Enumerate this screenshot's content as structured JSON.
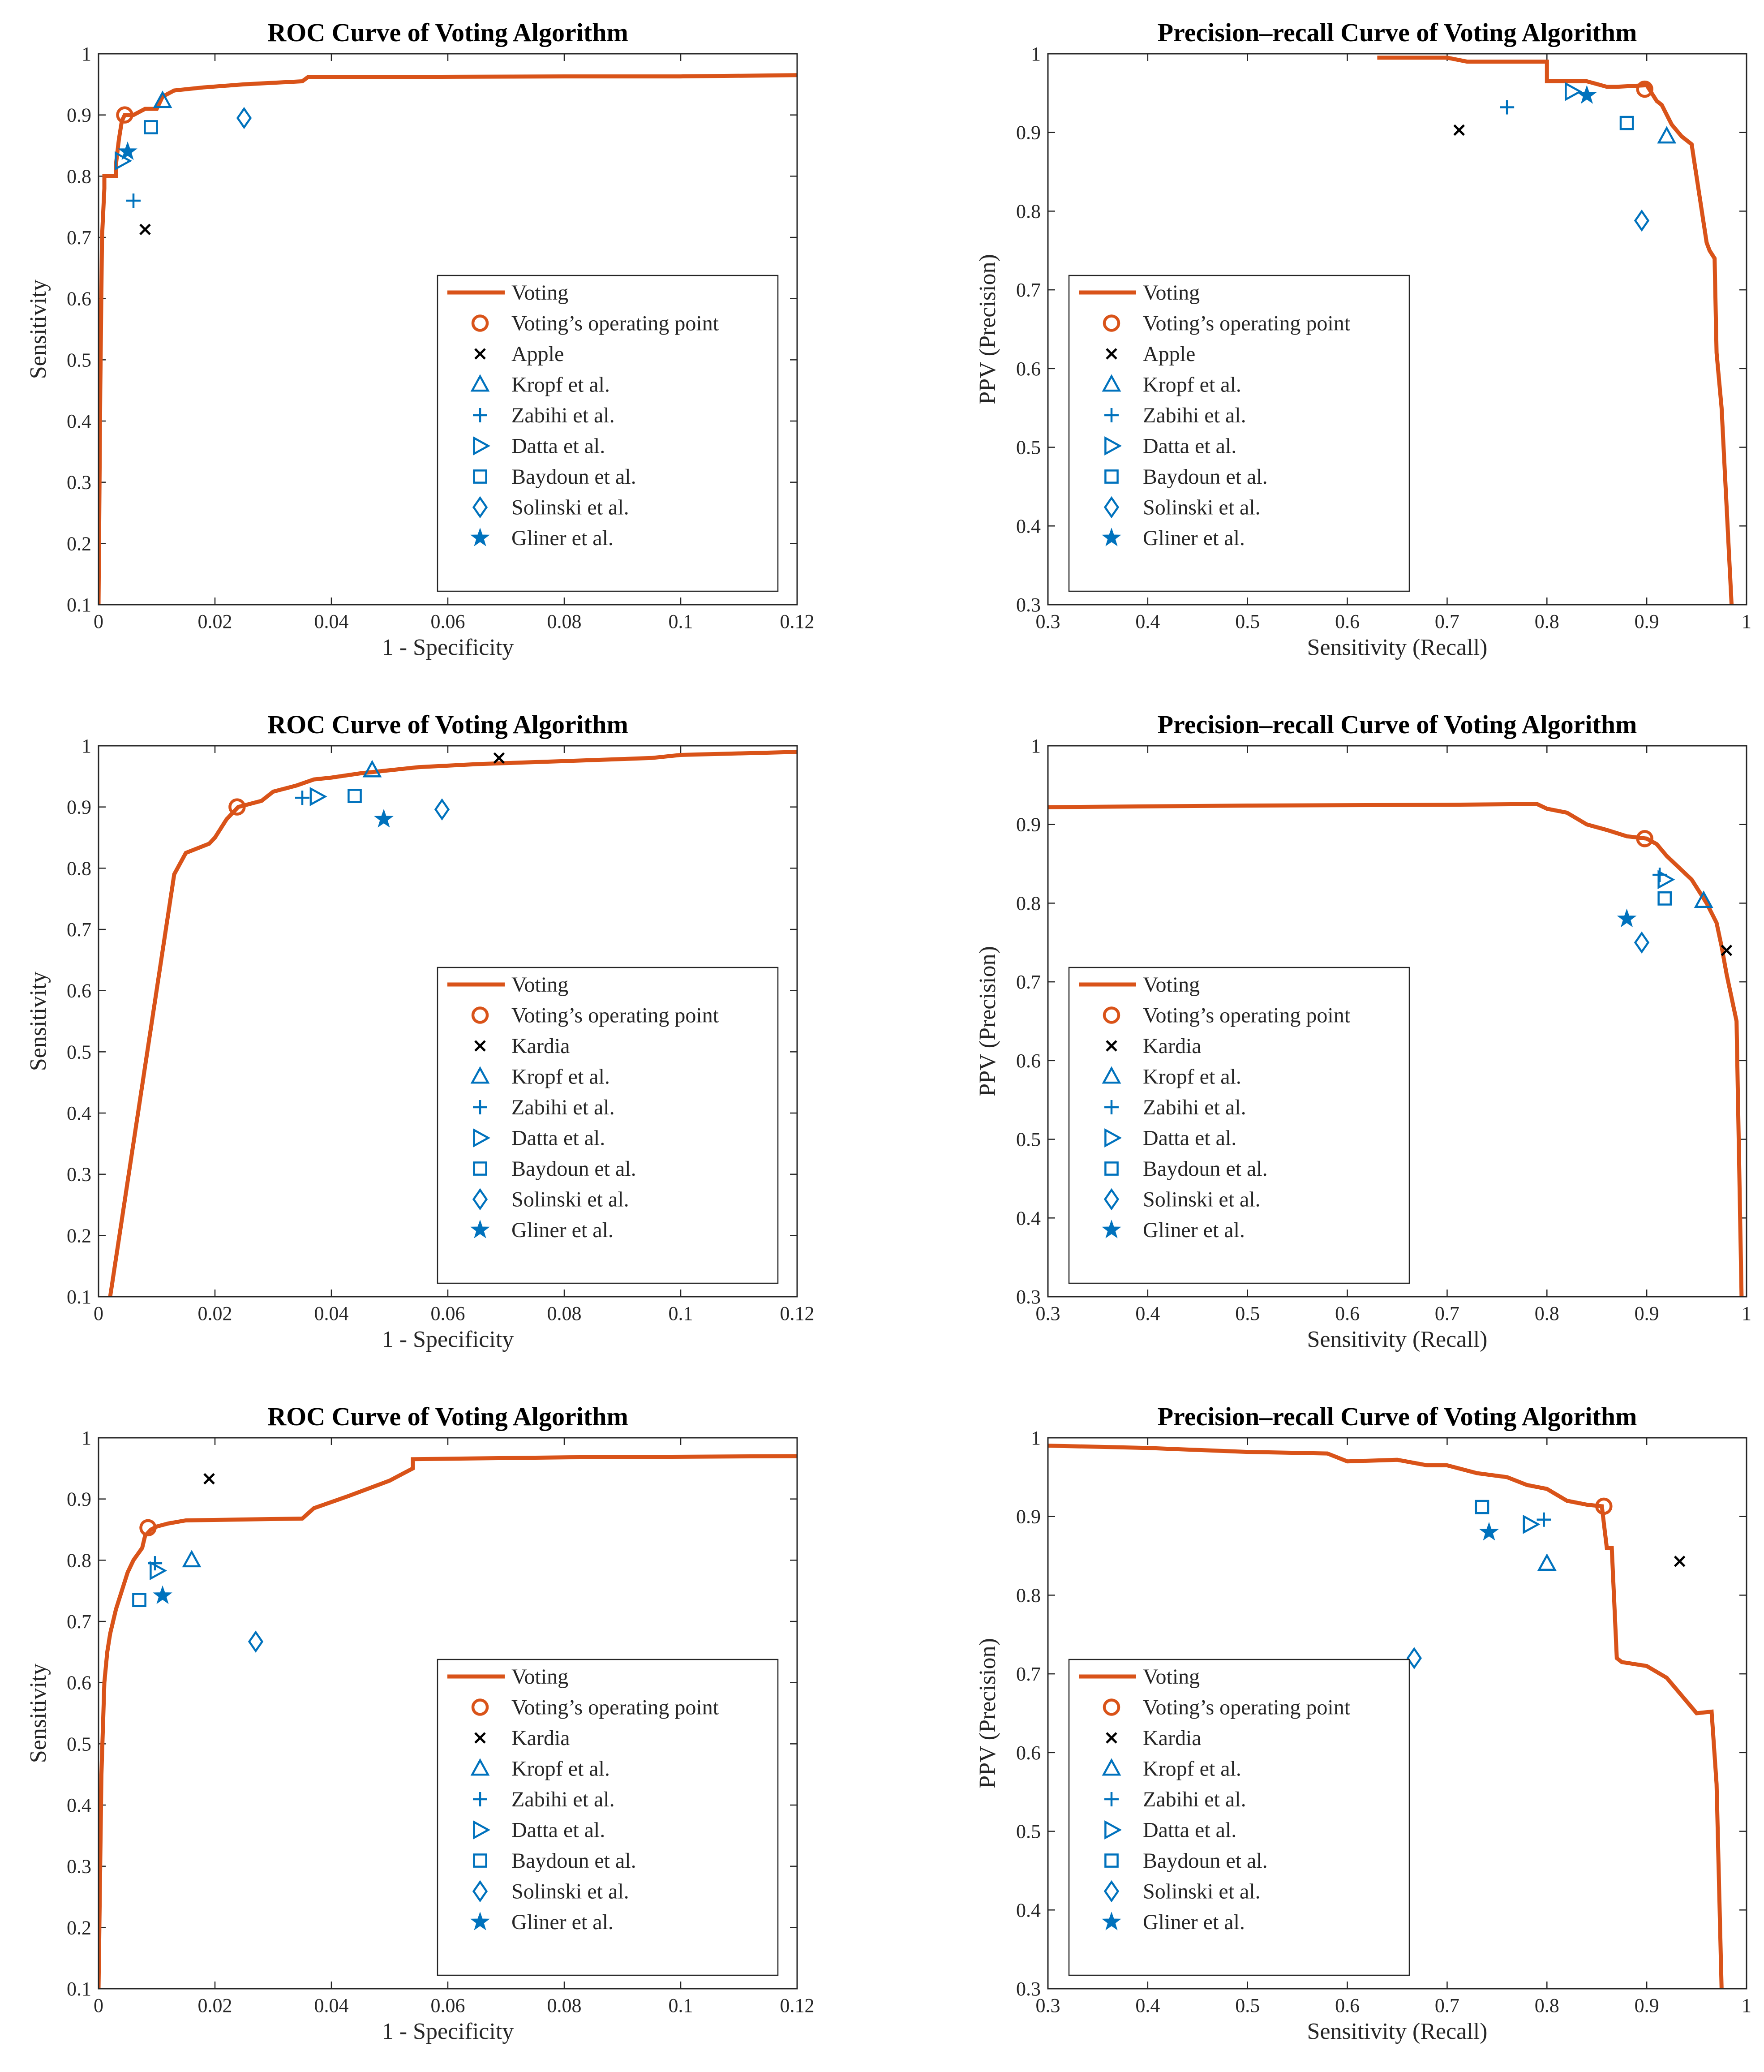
{
  "figure": {
    "name": "roc-and-precision-recall-panels"
  },
  "colors": {
    "voting": "#D95319",
    "method": "#0072BD",
    "reference": "#000000",
    "axis": "#262626"
  },
  "legend_labels": {
    "voting": "Voting",
    "operating_point": "Voting’s operating point",
    "kropf": "Kropf et al.",
    "zabihi": "Zabihi et al.",
    "datta": "Datta et al.",
    "baydoun": "Baydoun et al.",
    "solinski": "Solinski et al.",
    "gliner": "Gliner et al."
  },
  "chart_data": [
    {
      "type": "line",
      "panel": "roc-1",
      "title": "ROC Curve of Voting Algorithm",
      "xlabel": "1 - Specificity",
      "ylabel": "Sensitivity",
      "xlim": [
        0,
        0.12
      ],
      "ylim": [
        0.1,
        1
      ],
      "xticks": [
        0,
        0.02,
        0.04,
        0.06,
        0.08,
        0.1,
        0.12
      ],
      "xtick_labels": [
        "0",
        "0.02",
        "0.04",
        "0.06",
        "0.08",
        "0.1",
        "0.12"
      ],
      "yticks": [
        0.1,
        0.2,
        0.3,
        0.4,
        0.5,
        0.6,
        0.7,
        0.8,
        0.9,
        1
      ],
      "ytick_labels": [
        "0.1",
        "0.2",
        "0.3",
        "0.4",
        "0.5",
        "0.6",
        "0.7",
        "0.8",
        "0.9",
        "1"
      ],
      "legend_position": "bottom-right",
      "reference_label": "Apple",
      "curve": {
        "name": "Voting",
        "x": [
          0,
          0.0003,
          0.0006,
          0.001,
          0.001,
          0.003,
          0.003,
          0.0035,
          0.004,
          0.0045,
          0.006,
          0.008,
          0.01,
          0.011,
          0.013,
          0.018,
          0.025,
          0.035,
          0.036,
          0.05,
          0.08,
          0.1,
          0.12
        ],
        "y": [
          0.1,
          0.45,
          0.7,
          0.78,
          0.8,
          0.8,
          0.82,
          0.86,
          0.89,
          0.9,
          0.9,
          0.91,
          0.91,
          0.93,
          0.94,
          0.945,
          0.95,
          0.955,
          0.962,
          0.962,
          0.963,
          0.963,
          0.965
        ]
      },
      "operating_point": {
        "x": 0.0045,
        "y": 0.9
      },
      "reference_point": {
        "x": 0.008,
        "y": 0.713
      },
      "methods": [
        {
          "key": "kropf",
          "x": 0.011,
          "y": 0.923
        },
        {
          "key": "zabihi",
          "x": 0.006,
          "y": 0.76
        },
        {
          "key": "datta",
          "x": 0.004,
          "y": 0.825
        },
        {
          "key": "baydoun",
          "x": 0.009,
          "y": 0.88
        },
        {
          "key": "solinski",
          "x": 0.025,
          "y": 0.895
        },
        {
          "key": "gliner",
          "x": 0.005,
          "y": 0.84
        }
      ]
    },
    {
      "type": "line",
      "panel": "pr-1",
      "title": "Precision–recall Curve of Voting Algorithm",
      "xlabel": "Sensitivity (Recall)",
      "ylabel": "PPV (Precision)",
      "xlim": [
        0.3,
        1
      ],
      "ylim": [
        0.3,
        1
      ],
      "xticks": [
        0.3,
        0.4,
        0.5,
        0.6,
        0.7,
        0.8,
        0.9,
        1
      ],
      "xtick_labels": [
        "0.3",
        "0.4",
        "0.5",
        "0.6",
        "0.7",
        "0.8",
        "0.9",
        "1"
      ],
      "yticks": [
        0.3,
        0.4,
        0.5,
        0.6,
        0.7,
        0.8,
        0.9,
        1
      ],
      "ytick_labels": [
        "0.3",
        "0.4",
        "0.5",
        "0.6",
        "0.7",
        "0.8",
        "0.9",
        "1"
      ],
      "legend_position": "bottom-left",
      "reference_label": "Apple",
      "curve": {
        "name": "Voting",
        "x": [
          0.63,
          0.7,
          0.72,
          0.8,
          0.8,
          0.805,
          0.84,
          0.86,
          0.87,
          0.9,
          0.91,
          0.915,
          0.925,
          0.935,
          0.945,
          0.96,
          0.963,
          0.968,
          0.97,
          0.975,
          0.985
        ],
        "y": [
          0.995,
          0.995,
          0.99,
          0.99,
          0.965,
          0.965,
          0.965,
          0.958,
          0.958,
          0.96,
          0.94,
          0.935,
          0.91,
          0.895,
          0.885,
          0.76,
          0.75,
          0.74,
          0.62,
          0.55,
          0.3
        ]
      },
      "operating_point": {
        "x": 0.898,
        "y": 0.955
      },
      "reference_point": {
        "x": 0.712,
        "y": 0.903
      },
      "methods": [
        {
          "key": "kropf",
          "x": 0.92,
          "y": 0.895
        },
        {
          "key": "zabihi",
          "x": 0.76,
          "y": 0.932
        },
        {
          "key": "datta",
          "x": 0.825,
          "y": 0.952
        },
        {
          "key": "baydoun",
          "x": 0.88,
          "y": 0.912
        },
        {
          "key": "solinski",
          "x": 0.895,
          "y": 0.788
        },
        {
          "key": "gliner",
          "x": 0.84,
          "y": 0.947
        }
      ]
    },
    {
      "type": "line",
      "panel": "roc-2",
      "title": "ROC Curve of Voting Algorithm",
      "xlabel": "1 - Specificity",
      "ylabel": "Sensitivity",
      "xlim": [
        0,
        0.12
      ],
      "ylim": [
        0.1,
        1
      ],
      "xticks": [
        0,
        0.02,
        0.04,
        0.06,
        0.08,
        0.1,
        0.12
      ],
      "xtick_labels": [
        "0",
        "0.02",
        "0.04",
        "0.06",
        "0.08",
        "0.1",
        "0.12"
      ],
      "yticks": [
        0.1,
        0.2,
        0.3,
        0.4,
        0.5,
        0.6,
        0.7,
        0.8,
        0.9,
        1
      ],
      "ytick_labels": [
        "0.1",
        "0.2",
        "0.3",
        "0.4",
        "0.5",
        "0.6",
        "0.7",
        "0.8",
        "0.9",
        "1"
      ],
      "legend_position": "bottom-right",
      "reference_label": "Kardia",
      "curve": {
        "name": "Voting",
        "x": [
          0.002,
          0.013,
          0.015,
          0.019,
          0.02,
          0.021,
          0.022,
          0.024,
          0.028,
          0.03,
          0.034,
          0.037,
          0.04,
          0.045,
          0.055,
          0.065,
          0.08,
          0.095,
          0.1,
          0.12
        ],
        "y": [
          0.1,
          0.79,
          0.825,
          0.84,
          0.85,
          0.865,
          0.88,
          0.9,
          0.91,
          0.925,
          0.935,
          0.945,
          0.948,
          0.955,
          0.965,
          0.97,
          0.975,
          0.98,
          0.985,
          0.99
        ]
      },
      "operating_point": {
        "x": 0.0238,
        "y": 0.9
      },
      "reference_point": {
        "x": 0.0688,
        "y": 0.98
      },
      "methods": [
        {
          "key": "kropf",
          "x": 0.047,
          "y": 0.96
        },
        {
          "key": "zabihi",
          "x": 0.035,
          "y": 0.915
        },
        {
          "key": "datta",
          "x": 0.0375,
          "y": 0.917
        },
        {
          "key": "baydoun",
          "x": 0.044,
          "y": 0.918
        },
        {
          "key": "solinski",
          "x": 0.059,
          "y": 0.896
        },
        {
          "key": "gliner",
          "x": 0.049,
          "y": 0.88
        }
      ]
    },
    {
      "type": "line",
      "panel": "pr-2",
      "title": "Precision–recall Curve of Voting Algorithm",
      "xlabel": "Sensitivity (Recall)",
      "ylabel": "PPV (Precision)",
      "xlim": [
        0.3,
        1
      ],
      "ylim": [
        0.3,
        1
      ],
      "xticks": [
        0.3,
        0.4,
        0.5,
        0.6,
        0.7,
        0.8,
        0.9,
        1
      ],
      "xtick_labels": [
        "0.3",
        "0.4",
        "0.5",
        "0.6",
        "0.7",
        "0.8",
        "0.9",
        "1"
      ],
      "yticks": [
        0.3,
        0.4,
        0.5,
        0.6,
        0.7,
        0.8,
        0.9,
        1
      ],
      "ytick_labels": [
        "0.3",
        "0.4",
        "0.5",
        "0.6",
        "0.7",
        "0.8",
        "0.9",
        "1"
      ],
      "legend_position": "bottom-left",
      "reference_label": "Kardia",
      "curve": {
        "name": "Voting",
        "x": [
          0.3,
          0.5,
          0.7,
          0.79,
          0.8,
          0.82,
          0.84,
          0.86,
          0.88,
          0.9,
          0.91,
          0.92,
          0.93,
          0.945,
          0.96,
          0.97,
          0.975,
          0.98,
          0.985,
          0.99,
          0.995
        ],
        "y": [
          0.922,
          0.924,
          0.925,
          0.926,
          0.92,
          0.915,
          0.9,
          0.893,
          0.885,
          0.882,
          0.875,
          0.86,
          0.848,
          0.83,
          0.8,
          0.775,
          0.745,
          0.71,
          0.68,
          0.65,
          0.3
        ]
      },
      "operating_point": {
        "x": 0.898,
        "y": 0.882
      },
      "reference_point": {
        "x": 0.98,
        "y": 0.74
      },
      "methods": [
        {
          "key": "kropf",
          "x": 0.957,
          "y": 0.803
        },
        {
          "key": "zabihi",
          "x": 0.913,
          "y": 0.836
        },
        {
          "key": "datta",
          "x": 0.918,
          "y": 0.83
        },
        {
          "key": "baydoun",
          "x": 0.918,
          "y": 0.806
        },
        {
          "key": "solinski",
          "x": 0.895,
          "y": 0.75
        },
        {
          "key": "gliner",
          "x": 0.88,
          "y": 0.78
        }
      ]
    },
    {
      "type": "line",
      "panel": "roc-3",
      "title": "ROC Curve of Voting Algorithm",
      "xlabel": "1 - Specificity",
      "ylabel": "Sensitivity",
      "xlim": [
        0,
        0.12
      ],
      "ylim": [
        0.1,
        1
      ],
      "xticks": [
        0,
        0.02,
        0.04,
        0.06,
        0.08,
        0.1,
        0.12
      ],
      "xtick_labels": [
        "0",
        "0.02",
        "0.04",
        "0.06",
        "0.08",
        "0.1",
        "0.12"
      ],
      "yticks": [
        0.1,
        0.2,
        0.3,
        0.4,
        0.5,
        0.6,
        0.7,
        0.8,
        0.9,
        1
      ],
      "ytick_labels": [
        "0.1",
        "0.2",
        "0.3",
        "0.4",
        "0.5",
        "0.6",
        "0.7",
        "0.8",
        "0.9",
        "1"
      ],
      "legend_position": "bottom-right",
      "reference_label": "Kardia",
      "curve": {
        "name": "Voting",
        "x": [
          0,
          0.0005,
          0.001,
          0.0015,
          0.002,
          0.003,
          0.004,
          0.005,
          0.006,
          0.0075,
          0.008,
          0.009,
          0.01,
          0.012,
          0.015,
          0.035,
          0.037,
          0.04,
          0.043,
          0.05,
          0.054,
          0.054,
          0.08,
          0.12
        ],
        "y": [
          0.1,
          0.45,
          0.6,
          0.65,
          0.68,
          0.72,
          0.75,
          0.78,
          0.8,
          0.82,
          0.84,
          0.85,
          0.855,
          0.86,
          0.865,
          0.868,
          0.885,
          0.895,
          0.905,
          0.93,
          0.95,
          0.965,
          0.968,
          0.97
        ]
      },
      "operating_point": {
        "x": 0.0085,
        "y": 0.853
      },
      "reference_point": {
        "x": 0.019,
        "y": 0.933
      },
      "methods": [
        {
          "key": "kropf",
          "x": 0.016,
          "y": 0.8
        },
        {
          "key": "zabihi",
          "x": 0.0097,
          "y": 0.795
        },
        {
          "key": "datta",
          "x": 0.01,
          "y": 0.783
        },
        {
          "key": "baydoun",
          "x": 0.007,
          "y": 0.735
        },
        {
          "key": "solinski",
          "x": 0.027,
          "y": 0.667
        },
        {
          "key": "gliner",
          "x": 0.011,
          "y": 0.742
        }
      ]
    },
    {
      "type": "line",
      "panel": "pr-3",
      "title": "Precision–recall Curve of Voting Algorithm",
      "xlabel": "Sensitivity (Recall)",
      "ylabel": "PPV (Precision)",
      "xlim": [
        0.3,
        1
      ],
      "ylim": [
        0.3,
        1
      ],
      "xticks": [
        0.3,
        0.4,
        0.5,
        0.6,
        0.7,
        0.8,
        0.9,
        1
      ],
      "xtick_labels": [
        "0.3",
        "0.4",
        "0.5",
        "0.6",
        "0.7",
        "0.8",
        "0.9",
        "1"
      ],
      "yticks": [
        0.3,
        0.4,
        0.5,
        0.6,
        0.7,
        0.8,
        0.9,
        1
      ],
      "ytick_labels": [
        "0.3",
        "0.4",
        "0.5",
        "0.6",
        "0.7",
        "0.8",
        "0.9",
        "1"
      ],
      "legend_position": "bottom-left",
      "reference_label": "Kardia",
      "curve": {
        "name": "Voting",
        "x": [
          0.3,
          0.4,
          0.5,
          0.58,
          0.6,
          0.65,
          0.68,
          0.7,
          0.73,
          0.76,
          0.78,
          0.8,
          0.82,
          0.84,
          0.855,
          0.86,
          0.865,
          0.87,
          0.875,
          0.9,
          0.92,
          0.95,
          0.965,
          0.97,
          0.975
        ],
        "y": [
          0.99,
          0.987,
          0.982,
          0.98,
          0.97,
          0.972,
          0.965,
          0.965,
          0.955,
          0.95,
          0.94,
          0.935,
          0.92,
          0.915,
          0.913,
          0.86,
          0.86,
          0.72,
          0.715,
          0.71,
          0.695,
          0.65,
          0.652,
          0.56,
          0.3
        ]
      },
      "operating_point": {
        "x": 0.857,
        "y": 0.913
      },
      "reference_point": {
        "x": 0.933,
        "y": 0.843
      },
      "methods": [
        {
          "key": "kropf",
          "x": 0.8,
          "y": 0.84
        },
        {
          "key": "zabihi",
          "x": 0.797,
          "y": 0.896
        },
        {
          "key": "datta",
          "x": 0.783,
          "y": 0.89
        },
        {
          "key": "baydoun",
          "x": 0.735,
          "y": 0.912
        },
        {
          "key": "solinski",
          "x": 0.667,
          "y": 0.72
        },
        {
          "key": "gliner",
          "x": 0.742,
          "y": 0.88
        }
      ]
    }
  ]
}
